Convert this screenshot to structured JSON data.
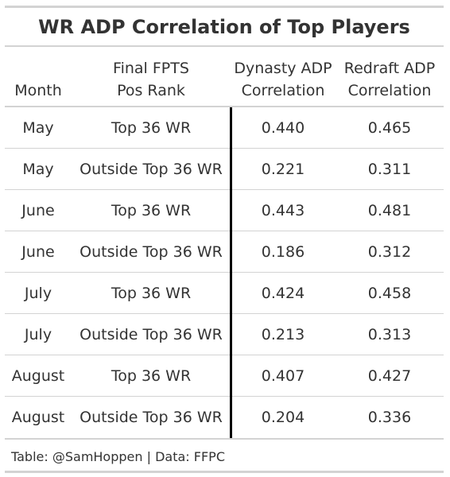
{
  "chart_data": {
    "type": "table",
    "title": "WR ADP Correlation of Top Players",
    "columns": [
      {
        "line1": "",
        "line2": "Month"
      },
      {
        "line1": "Final FPTS",
        "line2": "Pos Rank"
      },
      {
        "line1": "Dynasty ADP",
        "line2": "Correlation"
      },
      {
        "line1": "Redraft ADP",
        "line2": "Correlation"
      }
    ],
    "rows": [
      {
        "month": "May",
        "rank": "Top 36 WR",
        "dynasty": "0.440",
        "redraft": "0.465"
      },
      {
        "month": "May",
        "rank": "Outside Top 36 WR",
        "dynasty": "0.221",
        "redraft": "0.311"
      },
      {
        "month": "June",
        "rank": "Top 36 WR",
        "dynasty": "0.443",
        "redraft": "0.481"
      },
      {
        "month": "June",
        "rank": "Outside Top 36 WR",
        "dynasty": "0.186",
        "redraft": "0.312"
      },
      {
        "month": "July",
        "rank": "Top 36 WR",
        "dynasty": "0.424",
        "redraft": "0.458"
      },
      {
        "month": "July",
        "rank": "Outside Top 36 WR",
        "dynasty": "0.213",
        "redraft": "0.313"
      },
      {
        "month": "August",
        "rank": "Top 36 WR",
        "dynasty": "0.407",
        "redraft": "0.427"
      },
      {
        "month": "August",
        "rank": "Outside Top 36 WR",
        "dynasty": "0.204",
        "redraft": "0.336"
      }
    ],
    "source_note": "Table: @SamHoppen | Data: FFPC"
  }
}
